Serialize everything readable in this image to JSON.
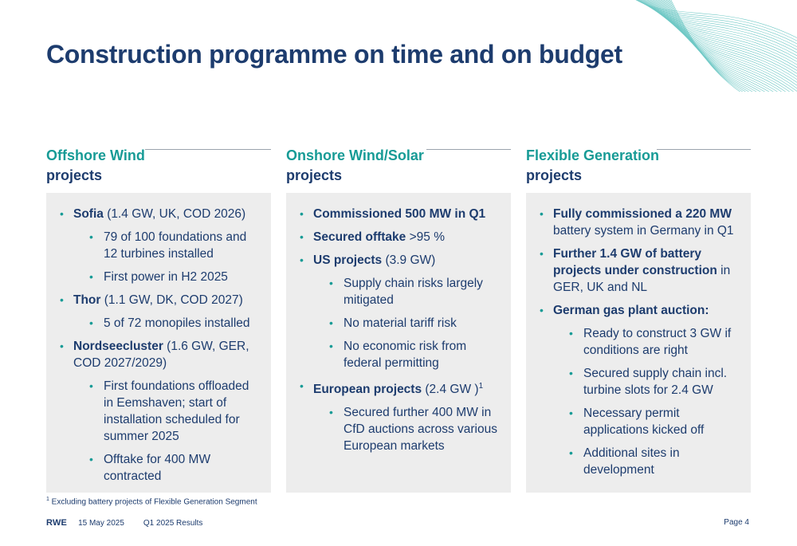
{
  "title": "Construction programme on time and on budget",
  "columns": [
    {
      "title_line1": "Offshore Wind",
      "title_line2": "projects",
      "items": [
        {
          "level": 1,
          "bold": "Sofia",
          "text": " (1.4 GW, UK, COD 2026)"
        },
        {
          "level": 2,
          "bold": "",
          "text": "79 of 100 foundations and 12 turbines installed"
        },
        {
          "level": 2,
          "bold": "",
          "text": "First power in H2 2025"
        },
        {
          "level": 1,
          "bold": "Thor",
          "text": " (1.1 GW, DK, COD 2027)"
        },
        {
          "level": 2,
          "bold": "",
          "text": "5 of 72 monopiles installed"
        },
        {
          "level": 1,
          "bold": "Nordseecluster",
          "text": " (1.6 GW, GER, COD 2027/2029)"
        },
        {
          "level": 2,
          "bold": "",
          "text": "First foundations offloaded in Eemshaven; start of installation scheduled for summer 2025"
        },
        {
          "level": 2,
          "bold": "",
          "text": "Offtake for 400 MW contracted"
        }
      ]
    },
    {
      "title_line1": "Onshore Wind/Solar",
      "title_line2": "projects",
      "items": [
        {
          "level": 1,
          "bold": "Commissioned 500 MW in Q1",
          "text": ""
        },
        {
          "level": 1,
          "bold": "Secured offtake",
          "text": " >95 %"
        },
        {
          "level": 1,
          "bold": "US projects",
          "text": " (3.9 GW)"
        },
        {
          "level": 2,
          "bold": "",
          "text": "Supply chain risks largely mitigated"
        },
        {
          "level": 2,
          "bold": "",
          "text": "No material tariff risk"
        },
        {
          "level": 2,
          "bold": "",
          "text": "No economic risk from federal permitting"
        },
        {
          "level": 1,
          "bold": "European projects",
          "text": " (2.4 GW )",
          "sup": "1"
        },
        {
          "level": 2,
          "bold": "",
          "text": "Secured further 400 MW in CfD auctions across various European markets"
        }
      ]
    },
    {
      "title_line1": "Flexible Generation",
      "title_line2": "projects",
      "items": [
        {
          "level": 1,
          "bold": "Fully commissioned a 220 MW",
          "text": " battery system in Germany in Q1"
        },
        {
          "level": 1,
          "bold": "Further 1.4 GW of battery projects under construction",
          "text": " in GER, UK and NL"
        },
        {
          "level": 1,
          "bold": "German gas plant auction:",
          "text": ""
        },
        {
          "level": 2,
          "bold": "",
          "text": "Ready to construct 3 GW if conditions are right"
        },
        {
          "level": 2,
          "bold": "",
          "text": "Secured supply chain incl. turbine slots for 2.4 GW"
        },
        {
          "level": 2,
          "bold": "",
          "text": "Necessary permit applications kicked off"
        },
        {
          "level": 2,
          "bold": "",
          "text": "Additional sites in development"
        }
      ]
    }
  ],
  "footnote": {
    "marker": "1",
    "text": " Excluding battery projects of Flexible Generation Segment"
  },
  "footer": {
    "logo": "RWE",
    "date": "15 May 2025",
    "report": "Q1 2025 Results",
    "page": "Page 4"
  },
  "colors": {
    "navy": "#1d3c6e",
    "teal": "#179b96",
    "panel": "#ededed"
  }
}
